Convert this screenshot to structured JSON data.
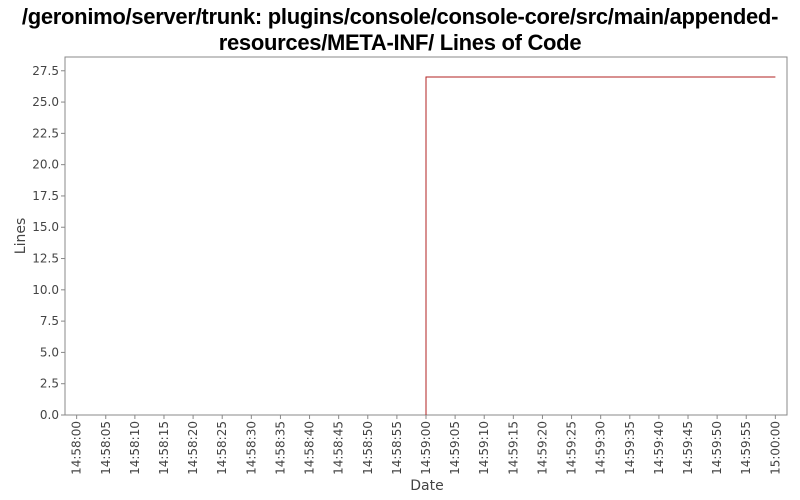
{
  "chart_data": {
    "type": "line",
    "title_line1": "/geronimo/server/trunk: plugins/console/console-core/src/main/appended-",
    "title_line2": "resources/META-INF/ Lines of Code",
    "xlabel": "Date",
    "ylabel": "Lines",
    "ylim": [
      0,
      28.6
    ],
    "yticks": [
      0.0,
      2.5,
      5.0,
      7.5,
      10.0,
      12.5,
      15.0,
      17.5,
      20.0,
      22.5,
      25.0,
      27.5
    ],
    "ytick_labels": [
      "0.0",
      "2.5",
      "5.0",
      "7.5",
      "10.0",
      "12.5",
      "15.0",
      "17.5",
      "20.0",
      "22.5",
      "25.0",
      "27.5"
    ],
    "xlim": [
      "14:57:58",
      "15:00:02"
    ],
    "xtick_labels": [
      "14:58:00",
      "14:58:05",
      "14:58:10",
      "14:58:15",
      "14:58:20",
      "14:58:25",
      "14:58:30",
      "14:58:35",
      "14:58:40",
      "14:58:45",
      "14:58:50",
      "14:58:55",
      "14:59:00",
      "14:59:05",
      "14:59:10",
      "14:59:15",
      "14:59:20",
      "14:59:25",
      "14:59:30",
      "14:59:35",
      "14:59:40",
      "14:59:45",
      "14:59:50",
      "14:59:55",
      "15:00:00"
    ],
    "grid": false,
    "series": [
      {
        "points": [
          {
            "x": "14:59:00",
            "y": 0
          },
          {
            "x": "14:59:00",
            "y": 27
          },
          {
            "x": "15:00:00",
            "y": 27
          }
        ],
        "color": "#b22222"
      }
    ]
  }
}
